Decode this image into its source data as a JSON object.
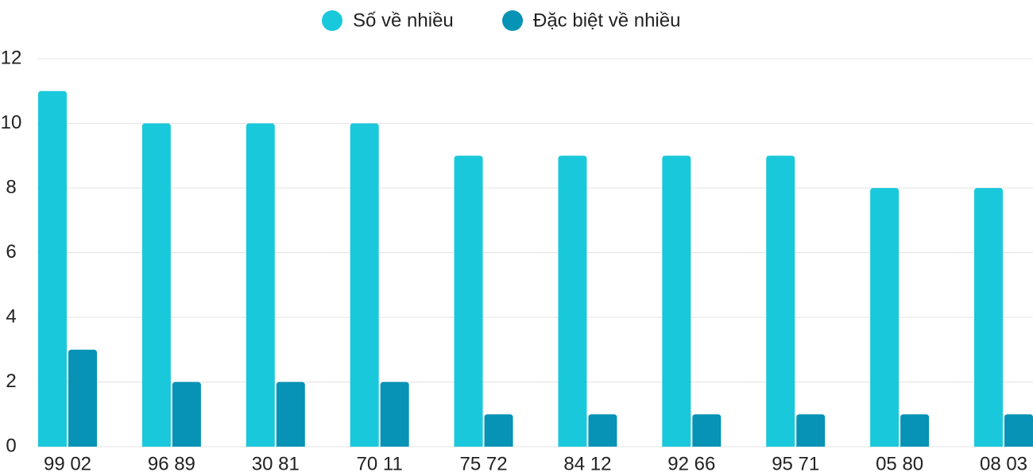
{
  "chart_data": {
    "type": "bar",
    "categories": [
      "99 02",
      "96 89",
      "30 81",
      "70 11",
      "75 72",
      "84 12",
      "92 66",
      "95 71",
      "05 80",
      "08 03"
    ],
    "series": [
      {
        "name": "Số về nhiều",
        "color": "#1ac8db",
        "values": [
          11,
          10,
          10,
          10,
          9,
          9,
          9,
          9,
          8,
          8
        ]
      },
      {
        "name": "Đặc biệt về nhiều",
        "color": "#0693b6",
        "values": [
          3,
          2,
          2,
          2,
          1,
          1,
          1,
          1,
          1,
          1
        ]
      }
    ],
    "ylim": [
      0,
      12
    ],
    "yticks": [
      0,
      2,
      4,
      6,
      8,
      10,
      12
    ],
    "grid": true,
    "legend": "top"
  }
}
